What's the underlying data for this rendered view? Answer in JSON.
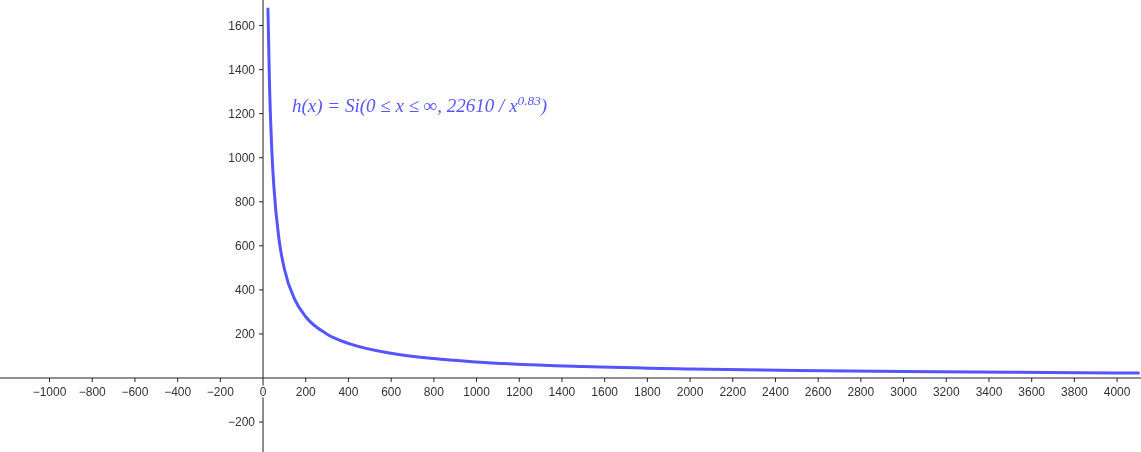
{
  "chart_data": {
    "type": "line",
    "xlim": [
      -1232,
      4112
    ],
    "ylim": [
      -336,
      1716
    ],
    "xticks": [
      {
        "value": -1000,
        "label": "−1000"
      },
      {
        "value": -800,
        "label": "−800"
      },
      {
        "value": -600,
        "label": "−600"
      },
      {
        "value": -400,
        "label": "−400"
      },
      {
        "value": -200,
        "label": "−200"
      },
      0,
      200,
      400,
      600,
      800,
      1000,
      1200,
      1400,
      1600,
      1800,
      2000,
      2200,
      2400,
      2600,
      2800,
      3000,
      3200,
      3400,
      3600,
      3800,
      4000
    ],
    "yticks": [
      {
        "value": -200,
        "label": "−200"
      },
      200,
      400,
      600,
      800,
      1000,
      1200,
      1400,
      1600
    ],
    "x": [
      23,
      30,
      40,
      50,
      75,
      100,
      150,
      200,
      300,
      400,
      600,
      800,
      1000,
      1500,
      2000,
      2500,
      3000,
      3500,
      4000,
      4100
    ],
    "series": [
      {
        "color": "#5555ff",
        "values": [
          1675,
          1343,
          1058,
          879,
          628,
          495,
          353,
          278,
          199,
          157,
          112,
          88,
          73,
          52,
          41,
          34,
          29,
          26,
          23,
          23
        ]
      }
    ],
    "annotations": [
      "h(x) = Si(0 ≤ x ≤ ∞, 22610 / x$^{0.83}$)"
    ],
    "grid": false,
    "marker": "none",
    "line_style": "solid"
  }
}
